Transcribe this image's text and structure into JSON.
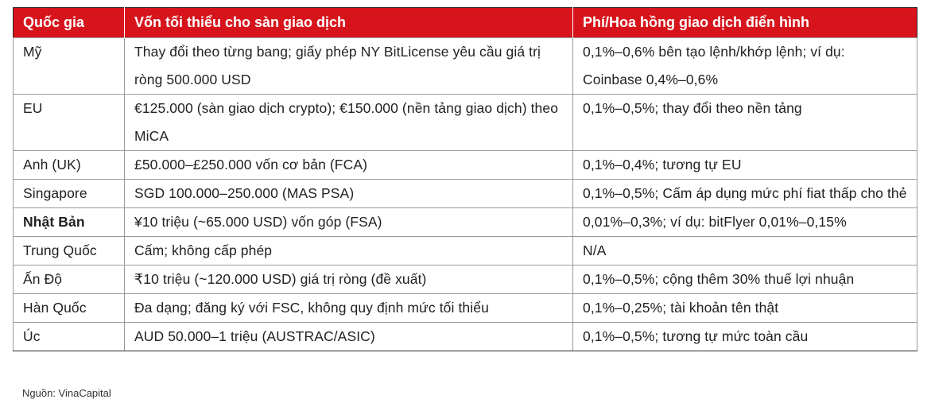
{
  "table": {
    "headers": [
      "Quốc gia",
      "Vốn tối thiểu cho sàn giao dịch",
      "Phí/Hoa hồng giao dịch điển hình"
    ],
    "rows": [
      [
        "Mỹ",
        "Thay đổi theo từng bang; giấy phép NY BitLicense yêu cầu giá trị ròng 500.000 USD",
        "0,1%–0,6% bên tạo lệnh/khớp lệnh; ví dụ: Coinbase 0,4%–0,6%"
      ],
      [
        "EU",
        "€125.000 (sàn giao dịch crypto); €150.000 (nền tảng giao dịch) theo MiCA",
        "0,1%–0,5%; thay đổi theo nền tảng"
      ],
      [
        "Anh (UK)",
        "£50.000–£250.000 vốn cơ bản (FCA)",
        "0,1%–0,4%; tương tự EU"
      ],
      [
        "Singapore",
        "SGD 100.000–250.000 (MAS PSA)",
        "0,1%–0,5%; Cấm áp dụng mức phí fiat thấp cho thẻ"
      ],
      [
        "Nhật Bản",
        "¥10 triệu (~65.000 USD) vốn góp (FSA)",
        "0,01%–0,3%; ví dụ: bitFlyer 0,01%–0,15%"
      ],
      [
        "Trung Quốc",
        "Cấm; không cấp phép",
        "N/A"
      ],
      [
        "Ấn Độ",
        "₹10 triệu (~120.000 USD) giá trị ròng (đề xuất)",
        "0,1%–0,5%; cộng thêm 30% thuế lợi nhuận"
      ],
      [
        "Hàn Quốc",
        "Đa dạng; đăng ký với FSC, không quy định mức tối thiểu",
        "0,1%–0,25%; tài khoản tên thật"
      ],
      [
        "Úc",
        "AUD 50.000–1 triệu (AUSTRAC/ASIC)",
        "0,1%–0,5%; tương tự mức toàn cầu"
      ]
    ]
  },
  "source": "Nguồn: VinaCapital",
  "colors": {
    "header_bg": "#d7141c",
    "header_text": "#ffffff"
  }
}
